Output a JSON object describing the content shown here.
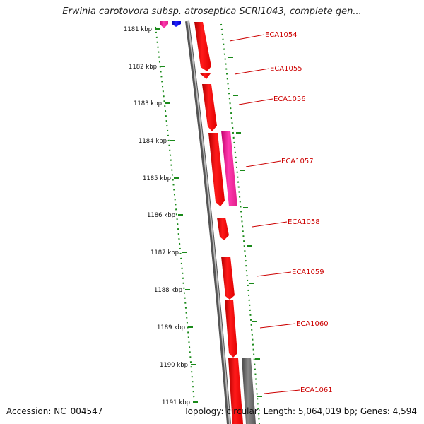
{
  "header": {
    "title": "Erwinia carotovora subsp. atroseptica SCRI1043, complete gen..."
  },
  "footer": {
    "accession": "Accession: NC_004547",
    "topology": "Topology: circular; Length: 5,064,019 bp; Genes: 4,594"
  },
  "ruler": {
    "ticks": [
      "1181 kbp",
      "1182 kbp",
      "1183 kbp",
      "1184 kbp",
      "1185 kbp",
      "1186 kbp",
      "1187 kbp",
      "1188 kbp",
      "1189 kbp",
      "1190 kbp",
      "1191 kbp"
    ]
  },
  "genes": [
    {
      "label": "ECA1054"
    },
    {
      "label": "ECA1055"
    },
    {
      "label": "ECA1056"
    },
    {
      "label": "ECA1057"
    },
    {
      "label": "ECA1058"
    },
    {
      "label": "ECA1059"
    },
    {
      "label": "ECA1060"
    },
    {
      "label": "ECA1061"
    }
  ],
  "colors": {
    "background": "#ffffff",
    "gene_forward": "#ff0000",
    "gene_other": "#ff2aa0",
    "gene_gray": "#707070",
    "gene_blue": "#0000ff",
    "backbone": "#888888",
    "tick_marks": "#1a8a1a",
    "label_text": "#cc0000"
  }
}
